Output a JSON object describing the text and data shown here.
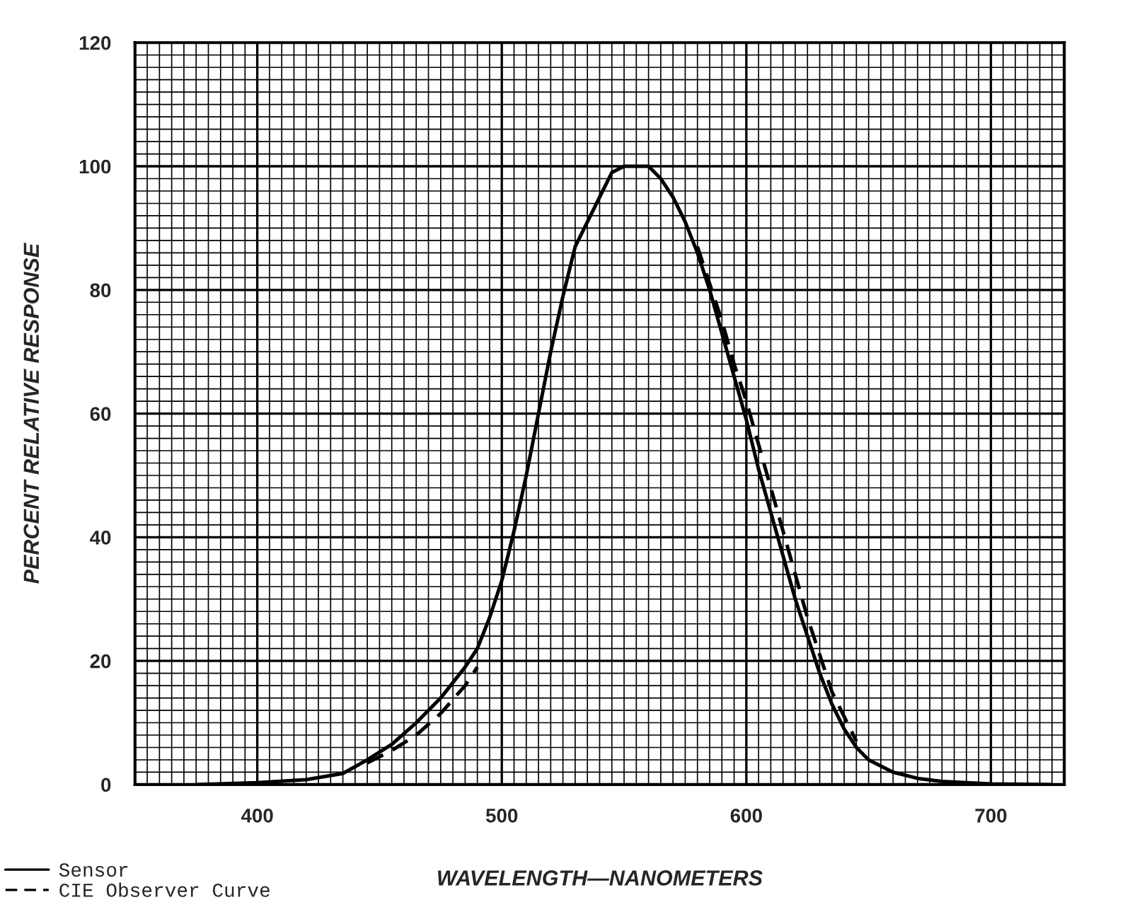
{
  "chart_data": {
    "type": "line",
    "xlabel": "WAVELENGTH—NANOMETERS",
    "ylabel": "PERCENT RELATIVE RESPONSE",
    "xlim": [
      350,
      730
    ],
    "ylim": [
      0,
      120
    ],
    "xticks": [
      400,
      500,
      600,
      700
    ],
    "yticks": [
      0,
      20,
      40,
      60,
      80,
      100,
      120
    ],
    "grid": true,
    "legend": "bottom left",
    "series": [
      {
        "name": "Sensor",
        "color": "#000000",
        "line_style": "solid",
        "x": [
          375,
          400,
          420,
          435,
          445,
          455,
          465,
          475,
          485,
          490,
          495,
          500,
          505,
          510,
          515,
          520,
          525,
          530,
          535,
          540,
          545,
          550,
          560,
          565,
          570,
          575,
          580,
          585,
          590,
          595,
          600,
          605,
          610,
          615,
          620,
          625,
          630,
          635,
          640,
          645,
          650,
          660,
          670,
          680,
          690,
          700,
          725
        ],
        "values": [
          0,
          0.3,
          0.8,
          1.8,
          4,
          6.5,
          10,
          14,
          19,
          22,
          27,
          33,
          41,
          50,
          60,
          70,
          79,
          87,
          91,
          95,
          99,
          100,
          100,
          98,
          95,
          91,
          86,
          80,
          73,
          66,
          59,
          51,
          44,
          37,
          30,
          24,
          18,
          13,
          9,
          6,
          4,
          2,
          1,
          0.5,
          0.3,
          0.1,
          0
        ]
      },
      {
        "name": "CIE Observer Curve",
        "color": "#000000",
        "line_style": "dashed",
        "x": [
          445,
          455,
          465,
          475,
          485,
          490,
          500,
          580,
          585,
          590,
          595,
          600,
          605,
          610,
          615,
          620,
          625,
          630,
          635,
          640,
          645
        ],
        "values": [
          3.5,
          5.5,
          8,
          11.5,
          16,
          19,
          null,
          87,
          81,
          75,
          68,
          62,
          55,
          48,
          41,
          34,
          27,
          21,
          15,
          11,
          7
        ]
      }
    ]
  }
}
